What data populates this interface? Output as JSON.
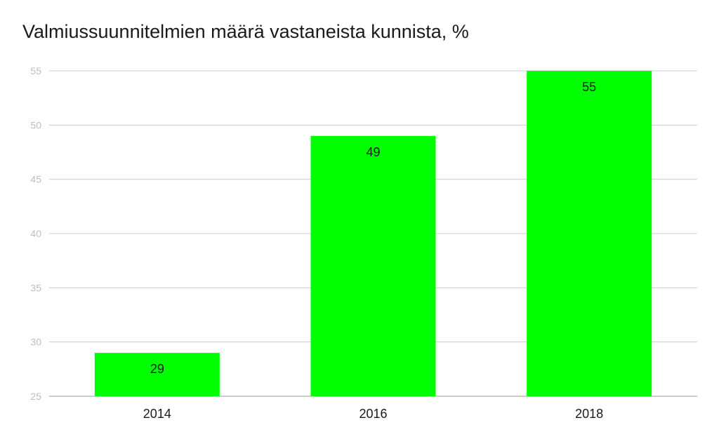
{
  "chart_data": {
    "type": "bar",
    "title": "Valmiussuunnitelmien määrä vastaneista kunnista, %",
    "categories": [
      "2014",
      "2016",
      "2018"
    ],
    "values": [
      29,
      49,
      55
    ],
    "data_labels": [
      "29",
      "49",
      "55"
    ],
    "xlabel": "",
    "ylabel": "",
    "ylim": [
      25,
      55
    ],
    "yticks": [
      25,
      30,
      35,
      40,
      45,
      50,
      55
    ],
    "ytick_labels": [
      "25",
      "30",
      "35",
      "40",
      "45",
      "50",
      "55"
    ],
    "grid": true,
    "legend": "none",
    "bar_color": "#00ff00",
    "grid_color": "#cccccc",
    "axis_color": "#999999",
    "ytick_label_color": "#bdbdbd",
    "text_color": "#1a1a1a"
  }
}
